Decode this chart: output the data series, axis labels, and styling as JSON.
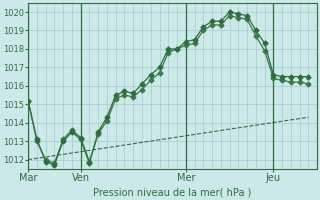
{
  "bg_color": "#cce8e8",
  "grid_color": "#aacfcf",
  "line_color1": "#2d6e3e",
  "line_color2": "#3a7a4a",
  "line_color3": "#2d6e3e",
  "title": "Pression niveau de la mer( hPa )",
  "ylim": [
    1011.5,
    1020.5
  ],
  "yticks": [
    1012,
    1013,
    1014,
    1015,
    1016,
    1017,
    1018,
    1019,
    1020
  ],
  "day_labels": [
    "Mar",
    "Ven",
    "Mer",
    "Jeu"
  ],
  "day_positions": [
    0,
    18,
    54,
    84
  ],
  "xlim": [
    0,
    99
  ],
  "series1_x": [
    0,
    3,
    6,
    9,
    12,
    15,
    18,
    21,
    24,
    27,
    30,
    33,
    36,
    39,
    42,
    45,
    48,
    51,
    54,
    57,
    60,
    63,
    66,
    69,
    72,
    75,
    78,
    81,
    84,
    87,
    90,
    93,
    96
  ],
  "series1_y": [
    1015.2,
    1013.1,
    1011.9,
    1011.7,
    1013.0,
    1013.5,
    1013.1,
    1011.8,
    1013.5,
    1014.3,
    1015.5,
    1015.7,
    1015.6,
    1016.1,
    1016.6,
    1017.0,
    1018.0,
    1018.0,
    1018.4,
    1018.5,
    1019.2,
    1019.5,
    1019.5,
    1020.0,
    1019.9,
    1019.8,
    1019.0,
    1018.3,
    1016.6,
    1016.5,
    1016.5,
    1016.5,
    1016.5
  ],
  "series2_x": [
    0,
    3,
    6,
    9,
    12,
    15,
    18,
    21,
    24,
    27,
    30,
    33,
    36,
    39,
    42,
    45,
    48,
    51,
    54,
    57,
    60,
    63,
    66,
    69,
    72,
    75,
    78,
    81,
    84,
    87,
    90,
    93,
    96
  ],
  "series2_y": [
    1015.2,
    1013.0,
    1012.0,
    1011.8,
    1013.1,
    1013.6,
    1013.2,
    1011.9,
    1013.4,
    1014.1,
    1015.3,
    1015.5,
    1015.4,
    1015.8,
    1016.3,
    1016.7,
    1017.8,
    1018.0,
    1018.2,
    1018.3,
    1019.0,
    1019.3,
    1019.3,
    1019.8,
    1019.7,
    1019.6,
    1018.7,
    1017.9,
    1016.4,
    1016.3,
    1016.2,
    1016.2,
    1016.1
  ],
  "series3_x": [
    0,
    96
  ],
  "series3_y": [
    1012.0,
    1014.3
  ],
  "vline_x": [
    0,
    18,
    54,
    84
  ],
  "marker": "D",
  "markersize": 2.5,
  "title_fontsize": 7,
  "tick_fontsize": 6
}
